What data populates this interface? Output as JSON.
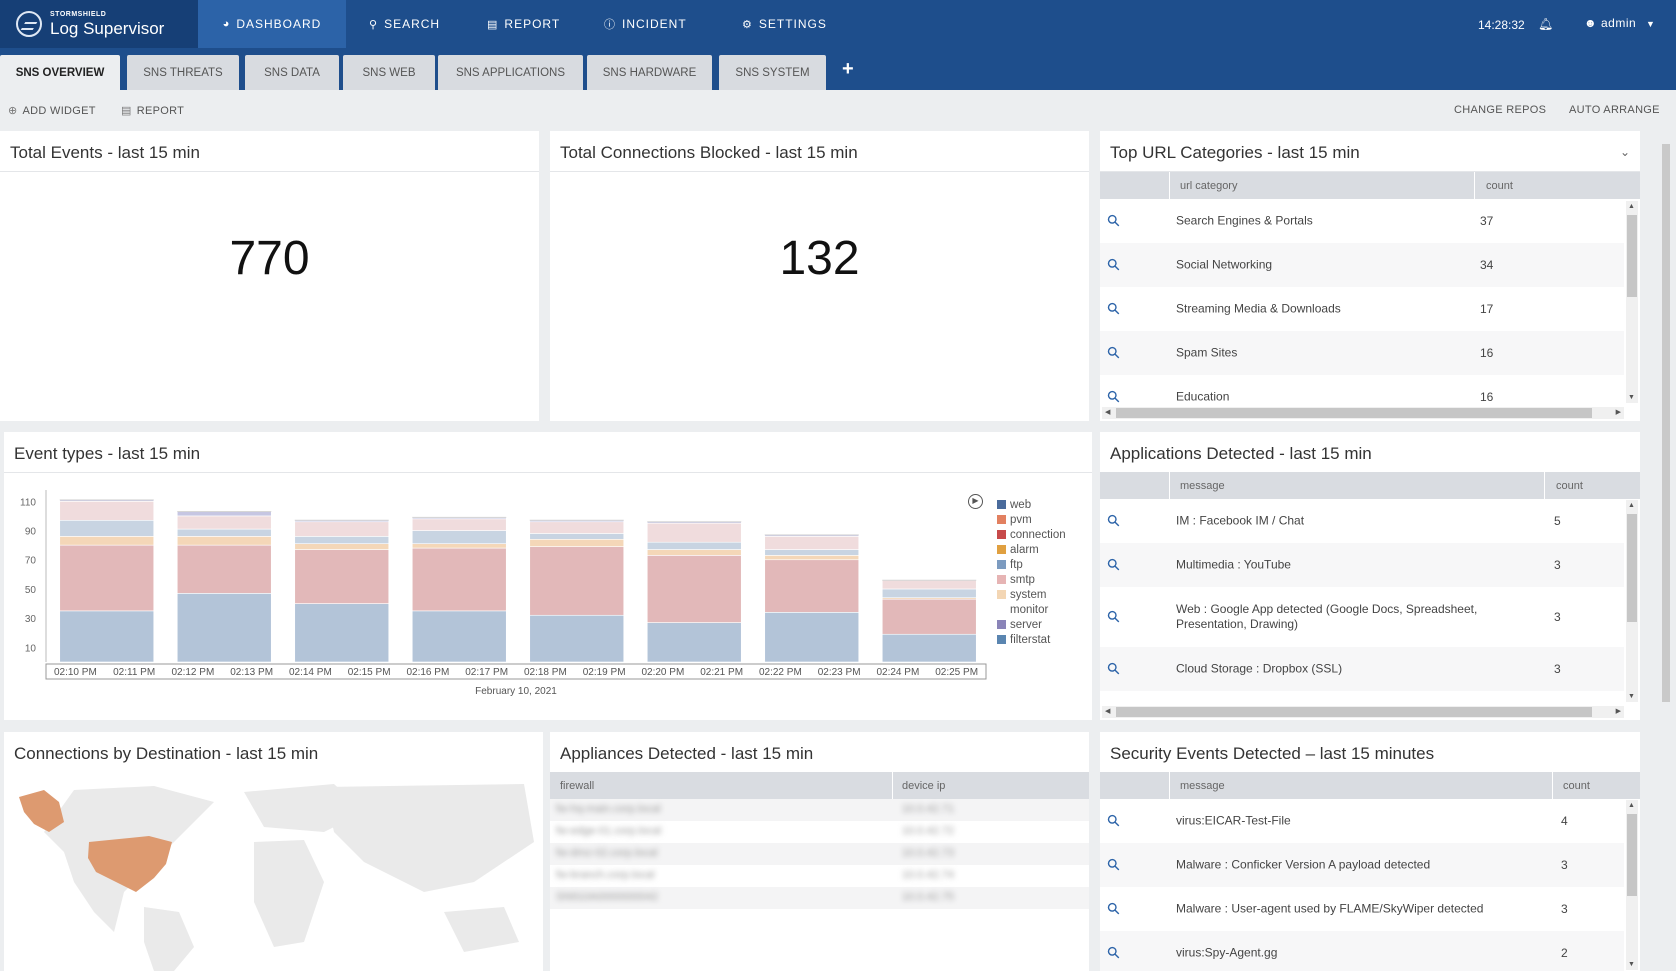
{
  "app": {
    "brand_small": "STORMSHIELD",
    "brand_name": "Log Supervisor"
  },
  "nav": {
    "dashboard": "DASHBOARD",
    "search": "SEARCH",
    "report": "REPORT",
    "incident": "INCIDENT",
    "settings": "SETTINGS"
  },
  "header": {
    "time": "14:28:32",
    "user": "admin"
  },
  "tabs": [
    "SNS OVERVIEW",
    "SNS THREATS",
    "SNS DATA",
    "SNS WEB",
    "SNS APPLICATIONS",
    "SNS HARDWARE",
    "SNS SYSTEM"
  ],
  "toolbar": {
    "add_widget": "ADD WIDGET",
    "report": "REPORT",
    "change_repos": "CHANGE REPOS",
    "auto_arrange": "AUTO ARRANGE"
  },
  "total_events": {
    "title": "Total Events - last 15 min",
    "value": "770"
  },
  "blocked": {
    "title": "Total Connections Blocked - last 15 min",
    "value": "132"
  },
  "url_categories": {
    "title": "Top URL Categories - last 15 min",
    "col1": "url category",
    "col2": "count",
    "rows": [
      {
        "name": "Search Engines & Portals",
        "count": "37"
      },
      {
        "name": "Social Networking",
        "count": "34"
      },
      {
        "name": "Streaming Media & Downloads",
        "count": "17"
      },
      {
        "name": "Spam Sites",
        "count": "16"
      },
      {
        "name": "Education",
        "count": "16"
      }
    ]
  },
  "event_types": {
    "title": "Event types - last 15 min",
    "xaxis_title": "February 10, 2021"
  },
  "chart_data": {
    "type": "bar",
    "stacked": true,
    "categories": [
      "02:10 PM",
      "02:12 PM",
      "02:14 PM",
      "02:16 PM",
      "02:18 PM",
      "02:20 PM",
      "02:22 PM",
      "02:24 PM"
    ],
    "tick_labels": [
      "02:10 PM",
      "02:11 PM",
      "02:12 PM",
      "02:13 PM",
      "02:14 PM",
      "02:15 PM",
      "02:16 PM",
      "02:17 PM",
      "02:18 PM",
      "02:19 PM",
      "02:20 PM",
      "02:21 PM",
      "02:22 PM",
      "02:23 PM",
      "02:24 PM",
      "02:25 PM"
    ],
    "y_ticks": [
      10,
      30,
      50,
      70,
      90,
      110
    ],
    "ylim": [
      0,
      115
    ],
    "legend_position": "top-right",
    "legend": [
      "web",
      "pvm",
      "connection",
      "alarm",
      "ftp",
      "smtp",
      "system",
      "monitor",
      "server",
      "filterstat"
    ],
    "series": [
      {
        "name": "filterstat",
        "color": "#b3c4d8",
        "values": [
          35,
          47,
          40,
          35,
          32,
          27,
          34,
          19
        ]
      },
      {
        "name": "pvm",
        "color": "#e2b8b9",
        "values": [
          45,
          33,
          37,
          43,
          47,
          46,
          36,
          24
        ]
      },
      {
        "name": "alarm",
        "color": "#f4d7b8",
        "values": [
          6,
          6,
          4,
          3,
          5,
          4,
          3,
          1
        ]
      },
      {
        "name": "ftp",
        "color": "#c8d4e2",
        "values": [
          11,
          5,
          5,
          9,
          4,
          5,
          4,
          6
        ]
      },
      {
        "name": "smtp",
        "color": "#f0dcdd",
        "values": [
          13,
          9,
          10,
          8,
          8,
          13,
          9,
          6
        ]
      },
      {
        "name": "server",
        "color": "#c6c6e2",
        "values": [
          1,
          3,
          1,
          1,
          1,
          1,
          1,
          0
        ]
      }
    ],
    "legend_colors": [
      "#4a6b9c",
      "#e28060",
      "#c74a4a",
      "#e0a040",
      "#7c9bc0",
      "#e6b4b4",
      "#f3d6b4",
      "#ffffff",
      "#8a84b8",
      "#5a85b0"
    ]
  },
  "applications": {
    "title": "Applications Detected - last 15 min",
    "col1": "message",
    "col2": "count",
    "rows": [
      {
        "name": "IM : Facebook IM / Chat",
        "count": "5"
      },
      {
        "name": "Multimedia : YouTube",
        "count": "3"
      },
      {
        "name": "Web : Google App detected (Google Docs, Spreadsheet, Presentation, Drawing)",
        "count": "3"
      },
      {
        "name": "Cloud Storage : Dropbox (SSL)",
        "count": "3"
      }
    ]
  },
  "destinations": {
    "title": "Connections by Destination - last 15 min"
  },
  "appliances": {
    "title": "Appliances Detected - last 15 min",
    "col1": "firewall",
    "col2": "device ip",
    "rows": [
      {
        "fw": "fw-hq-main.corp.local",
        "ip": "10.0.42.71"
      },
      {
        "fw": "fw-edge-01.corp.local",
        "ip": "10.0.42.72"
      },
      {
        "fw": "fw-dmz-02.corp.local",
        "ip": "10.0.42.73"
      },
      {
        "fw": "fw-branch.corp.local",
        "ip": "10.0.42.74"
      },
      {
        "fw": "SN910A0000000042",
        "ip": "10.0.42.75"
      }
    ]
  },
  "security_events": {
    "title": "Security Events Detected – last 15 minutes",
    "col1": "message",
    "col2": "count",
    "rows": [
      {
        "name": "virus:EICAR-Test-File",
        "count": "4"
      },
      {
        "name": "Malware : Conficker Version A payload detected",
        "count": "3"
      },
      {
        "name": "Malware : User-agent used by FLAME/SkyWiper detected",
        "count": "3"
      },
      {
        "name": "virus:Spy-Agent.gg",
        "count": "2"
      }
    ]
  }
}
